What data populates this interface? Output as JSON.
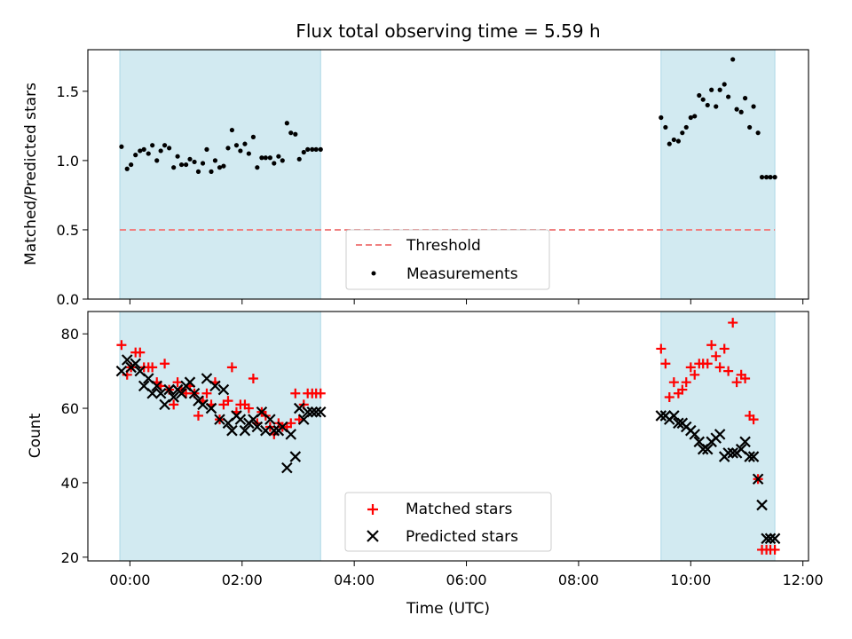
{
  "chart_data": [
    {
      "type": "scatter",
      "title": "Flux total observing time = 5.59 h",
      "xlabel": "",
      "ylabel": "Matched/Predicted stars",
      "ylim": [
        0,
        1.8
      ],
      "xlim": [
        -0.75,
        12.1
      ],
      "y_ticks": [
        "0.0",
        "0.5",
        "1.0",
        "1.5"
      ],
      "shaded_intervals": [
        [
          -0.18,
          3.4
        ],
        [
          9.47,
          11.5
        ]
      ],
      "shade_color": "#add8e6",
      "threshold": {
        "name": "Threshold",
        "value": 0.5,
        "x_range": [
          -0.18,
          11.5
        ],
        "color": "#f08080"
      },
      "legend": {
        "position": "lower center",
        "entries": [
          "Threshold",
          "Measurements"
        ]
      },
      "series": [
        {
          "name": "Measurements",
          "color": "#000000",
          "marker": "dot",
          "x": [
            -0.15,
            -0.05,
            0.02,
            0.1,
            0.18,
            0.25,
            0.33,
            0.4,
            0.48,
            0.55,
            0.62,
            0.7,
            0.78,
            0.85,
            0.92,
            1.0,
            1.07,
            1.15,
            1.22,
            1.3,
            1.37,
            1.45,
            1.52,
            1.6,
            1.67,
            1.75,
            1.82,
            1.9,
            1.97,
            2.05,
            2.12,
            2.2,
            2.27,
            2.35,
            2.42,
            2.5,
            2.57,
            2.65,
            2.72,
            2.8,
            2.87,
            2.95,
            3.02,
            3.1,
            3.17,
            3.25,
            3.32,
            3.4,
            9.47,
            9.55,
            9.62,
            9.7,
            9.78,
            9.85,
            9.92,
            10.0,
            10.07,
            10.15,
            10.22,
            10.3,
            10.37,
            10.45,
            10.52,
            10.6,
            10.67,
            10.75,
            10.82,
            10.9,
            10.97,
            11.05,
            11.12,
            11.2,
            11.27,
            11.35,
            11.42,
            11.5
          ],
          "y": [
            1.1,
            0.94,
            0.97,
            1.04,
            1.07,
            1.08,
            1.05,
            1.11,
            1.0,
            1.07,
            1.11,
            1.09,
            0.95,
            1.03,
            0.97,
            0.97,
            1.01,
            0.99,
            0.92,
            0.98,
            1.08,
            0.92,
            1.0,
            0.95,
            0.96,
            1.09,
            1.22,
            1.11,
            1.07,
            1.12,
            1.05,
            1.17,
            0.95,
            1.02,
            1.02,
            1.02,
            0.98,
            1.03,
            1.0,
            1.27,
            1.2,
            1.19,
            1.01,
            1.06,
            1.08,
            1.08,
            1.08,
            1.08,
            1.31,
            1.24,
            1.12,
            1.15,
            1.14,
            1.2,
            1.24,
            1.31,
            1.32,
            1.47,
            1.44,
            1.4,
            1.51,
            1.39,
            1.51,
            1.55,
            1.46,
            1.73,
            1.37,
            1.35,
            1.45,
            1.24,
            1.39,
            1.2,
            0.88,
            0.88,
            0.88,
            0.88
          ]
        }
      ]
    },
    {
      "type": "scatter",
      "title": "",
      "xlabel": "Time (UTC)",
      "ylabel": "Count",
      "ylim": [
        19,
        86
      ],
      "xlim": [
        -0.75,
        12.1
      ],
      "x_ticks": [
        "00:00",
        "02:00",
        "04:00",
        "06:00",
        "08:00",
        "10:00",
        "12:00"
      ],
      "y_ticks": [
        "20",
        "40",
        "60",
        "80"
      ],
      "shaded_intervals": [
        [
          -0.18,
          3.4
        ],
        [
          9.47,
          11.5
        ]
      ],
      "shade_color": "#add8e6",
      "legend": {
        "position": "lower center",
        "entries": [
          "Matched stars",
          "Predicted stars"
        ]
      },
      "series": [
        {
          "name": "Matched stars",
          "color": "#ff0000",
          "marker": "plus",
          "x": [
            -0.15,
            -0.05,
            0.02,
            0.1,
            0.18,
            0.25,
            0.33,
            0.4,
            0.48,
            0.55,
            0.62,
            0.7,
            0.78,
            0.85,
            0.92,
            1.0,
            1.07,
            1.15,
            1.22,
            1.3,
            1.37,
            1.45,
            1.52,
            1.6,
            1.67,
            1.75,
            1.82,
            1.9,
            1.97,
            2.05,
            2.12,
            2.2,
            2.27,
            2.35,
            2.42,
            2.5,
            2.57,
            2.65,
            2.72,
            2.8,
            2.87,
            2.95,
            3.02,
            3.1,
            3.17,
            3.25,
            3.32,
            3.4,
            9.47,
            9.55,
            9.62,
            9.7,
            9.78,
            9.85,
            9.92,
            10.0,
            10.07,
            10.15,
            10.22,
            10.3,
            10.37,
            10.45,
            10.52,
            10.6,
            10.67,
            10.75,
            10.82,
            10.9,
            10.97,
            11.05,
            11.12,
            11.2,
            11.27,
            11.35,
            11.42,
            11.5
          ],
          "y": [
            77,
            69,
            71,
            75,
            75,
            71,
            71,
            71,
            67,
            66,
            72,
            65,
            61,
            67,
            65,
            64,
            66,
            64,
            58,
            62,
            64,
            61,
            67,
            57,
            61,
            62,
            71,
            59,
            61,
            61,
            60,
            68,
            56,
            59,
            58,
            55,
            53,
            56,
            55,
            55,
            56,
            64,
            57,
            61,
            64,
            64,
            64,
            64,
            76,
            72,
            63,
            67,
            64,
            65,
            67,
            71,
            69,
            72,
            72,
            72,
            77,
            74,
            71,
            76,
            70,
            83,
            67,
            69,
            68,
            58,
            57,
            41,
            22,
            22,
            22,
            22
          ]
        },
        {
          "name": "Predicted stars",
          "color": "#000000",
          "marker": "x",
          "x": [
            -0.15,
            -0.05,
            0.02,
            0.1,
            0.18,
            0.25,
            0.33,
            0.4,
            0.48,
            0.55,
            0.62,
            0.7,
            0.78,
            0.85,
            0.92,
            1.0,
            1.07,
            1.15,
            1.22,
            1.3,
            1.37,
            1.45,
            1.52,
            1.6,
            1.67,
            1.75,
            1.82,
            1.9,
            1.97,
            2.05,
            2.12,
            2.2,
            2.27,
            2.35,
            2.42,
            2.5,
            2.57,
            2.65,
            2.72,
            2.8,
            2.87,
            2.95,
            3.02,
            3.1,
            3.17,
            3.25,
            3.32,
            3.4,
            9.47,
            9.55,
            9.62,
            9.7,
            9.78,
            9.85,
            9.92,
            10.0,
            10.07,
            10.15,
            10.22,
            10.3,
            10.37,
            10.45,
            10.52,
            10.6,
            10.67,
            10.75,
            10.82,
            10.9,
            10.97,
            11.05,
            11.12,
            11.2,
            11.27,
            11.35,
            11.42,
            11.5
          ],
          "y": [
            70,
            73,
            71,
            72,
            70,
            66,
            68,
            64,
            66,
            64,
            61,
            65,
            63,
            65,
            64,
            66,
            67,
            64,
            62,
            61,
            68,
            60,
            66,
            57,
            65,
            56,
            54,
            58,
            57,
            54,
            56,
            57,
            55,
            59,
            54,
            57,
            54,
            54,
            55,
            44,
            53,
            47,
            60,
            57,
            59,
            59,
            59,
            59,
            58,
            58,
            57,
            58,
            56,
            56,
            55,
            54,
            53,
            51,
            49,
            49,
            51,
            52,
            53,
            47,
            48,
            48,
            48,
            49,
            51,
            47,
            47,
            41,
            34,
            25,
            25,
            25
          ]
        }
      ]
    }
  ]
}
